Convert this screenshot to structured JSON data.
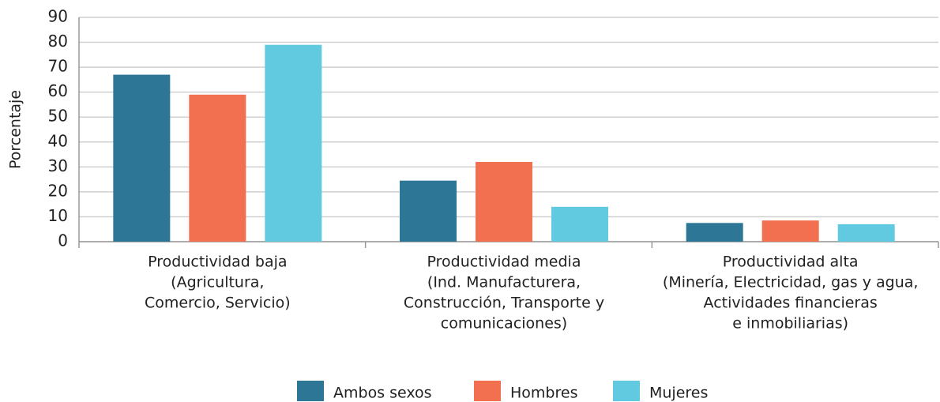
{
  "chart_data": {
    "type": "bar",
    "y_label": "Porcentaje",
    "categories": [
      [
        "Productividad baja",
        "(Agricultura,",
        "Comercio, Servicio)"
      ],
      [
        "Productividad media",
        "(Ind. Manufacturera,",
        "Construcción, Transporte y",
        "comunicaciones)"
      ],
      [
        "Productividad alta",
        "(Minería, Electricidad, gas y agua,",
        "Actividades financieras",
        "e inmobiliarias)"
      ]
    ],
    "series": [
      {
        "name": "Ambos sexos",
        "color": "#2e7696",
        "values": [
          67,
          24.5,
          7.5
        ]
      },
      {
        "name": "Hombres",
        "color": "#f26f50",
        "values": [
          59,
          32,
          8.5
        ]
      },
      {
        "name": "Mujeres",
        "color": "#62cae0",
        "values": [
          79,
          14,
          7
        ]
      }
    ],
    "ylim": [
      0,
      90
    ],
    "yticks": [
      0,
      10,
      20,
      30,
      40,
      50,
      60,
      70,
      80,
      90
    ],
    "grid": true
  }
}
